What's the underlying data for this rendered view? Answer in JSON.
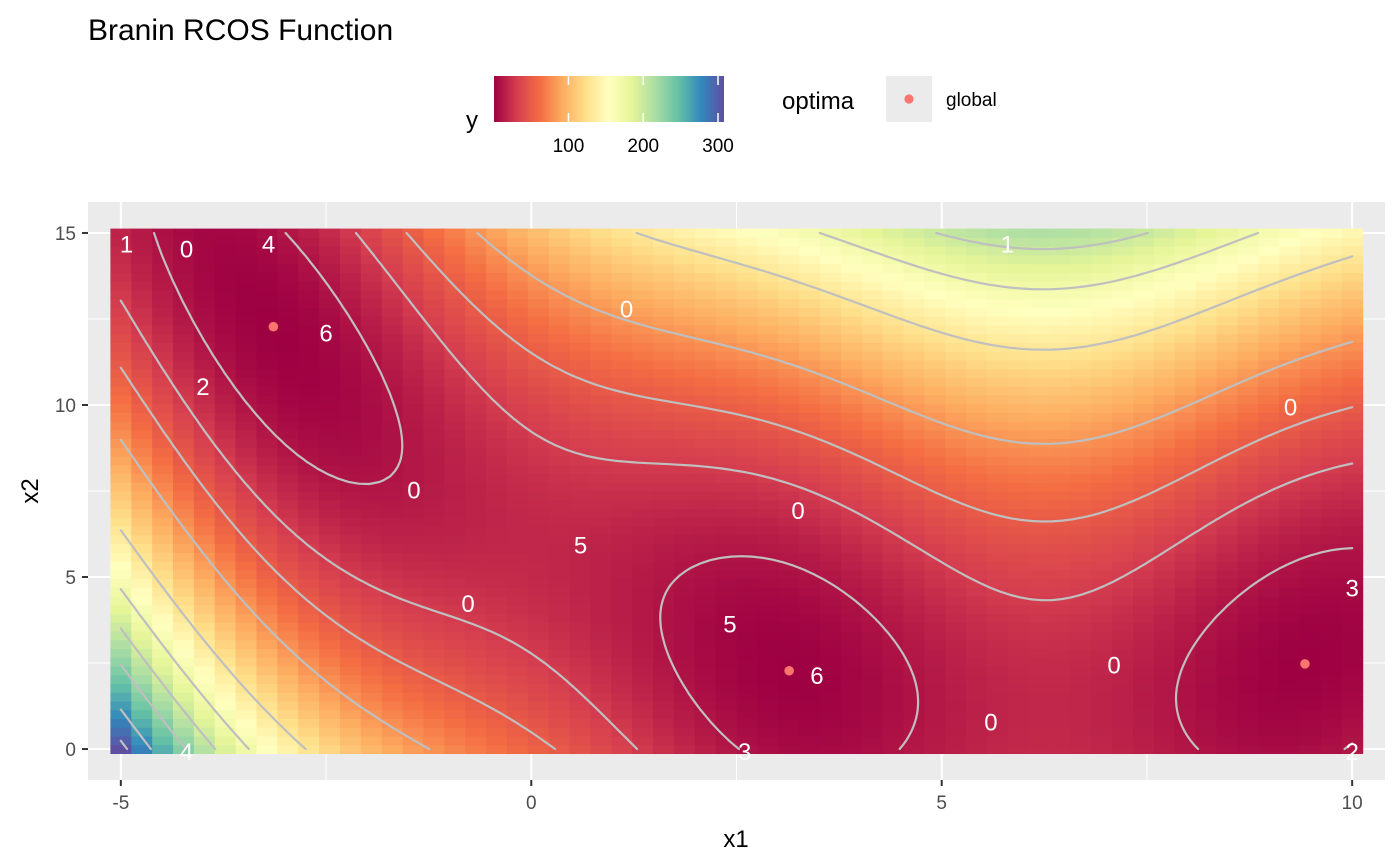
{
  "chart_data": {
    "type": "heatmap",
    "title": "Branin RCOS Function",
    "xlabel": "x1",
    "ylabel": "x2",
    "xlim": [
      -5.4,
      10.4
    ],
    "ylim": [
      -0.9,
      15.9
    ],
    "x_ticks": [
      -5,
      0,
      5,
      10
    ],
    "y_ticks": [
      0,
      5,
      10,
      15
    ],
    "x_tick_labels": [
      "-5",
      "0",
      "5",
      "10"
    ],
    "y_tick_labels": [
      "0",
      "5",
      "10",
      "15"
    ],
    "grid": true,
    "function": "branin",
    "domain": {
      "x1": [
        -5,
        10
      ],
      "x2": [
        0,
        15
      ]
    },
    "contour_levels": [
      10,
      30,
      50,
      80,
      130,
      170,
      200,
      230,
      270,
      300
    ],
    "fill_legend": {
      "title": "y",
      "tick_values": [
        100,
        200,
        300
      ],
      "tick_labels": [
        "100",
        "200",
        "300"
      ],
      "range": [
        0.4,
        308
      ],
      "palette": [
        "#9E0142",
        "#D53E4F",
        "#F46D43",
        "#FDAE61",
        "#FEE08B",
        "#FFFFBF",
        "#E6F598",
        "#ABDDA4",
        "#66C2A5",
        "#3288BD",
        "#5E4FA2"
      ]
    },
    "optima_legend": {
      "title": "optima",
      "entries": [
        "global"
      ],
      "color": "#F8766D"
    },
    "optima_points": [
      {
        "x": -3.14159,
        "y": 12.275
      },
      {
        "x": 3.14159,
        "y": 2.275
      },
      {
        "x": 9.42478,
        "y": 2.475
      }
    ],
    "contour_labels": [
      {
        "text": "1",
        "x": -4.93,
        "y": 14.7
      },
      {
        "text": "0",
        "x": -4.2,
        "y": 14.55
      },
      {
        "text": "4",
        "x": -3.2,
        "y": 14.7
      },
      {
        "text": "6",
        "x": -2.5,
        "y": 12.1
      },
      {
        "text": "2",
        "x": -4.0,
        "y": 10.55
      },
      {
        "text": "0",
        "x": 1.16,
        "y": 12.8
      },
      {
        "text": "1",
        "x": 5.8,
        "y": 14.7
      },
      {
        "text": "0",
        "x": -1.43,
        "y": 7.55
      },
      {
        "text": "5",
        "x": 0.6,
        "y": 5.95
      },
      {
        "text": "0",
        "x": 3.25,
        "y": 6.95
      },
      {
        "text": "0",
        "x": -0.77,
        "y": 4.25
      },
      {
        "text": "5",
        "x": 2.42,
        "y": 3.65
      },
      {
        "text": "6",
        "x": 3.48,
        "y": 2.15
      },
      {
        "text": "0",
        "x": 9.25,
        "y": 9.95
      },
      {
        "text": "3",
        "x": 10.0,
        "y": 4.7
      },
      {
        "text": "0",
        "x": 7.1,
        "y": 2.45
      },
      {
        "text": "0",
        "x": 5.6,
        "y": 0.8
      },
      {
        "text": "4",
        "x": -4.2,
        "y": -0.05
      },
      {
        "text": "3",
        "x": 2.6,
        "y": -0.05
      },
      {
        "text": "2",
        "x": 10.0,
        "y": -0.05
      }
    ]
  }
}
